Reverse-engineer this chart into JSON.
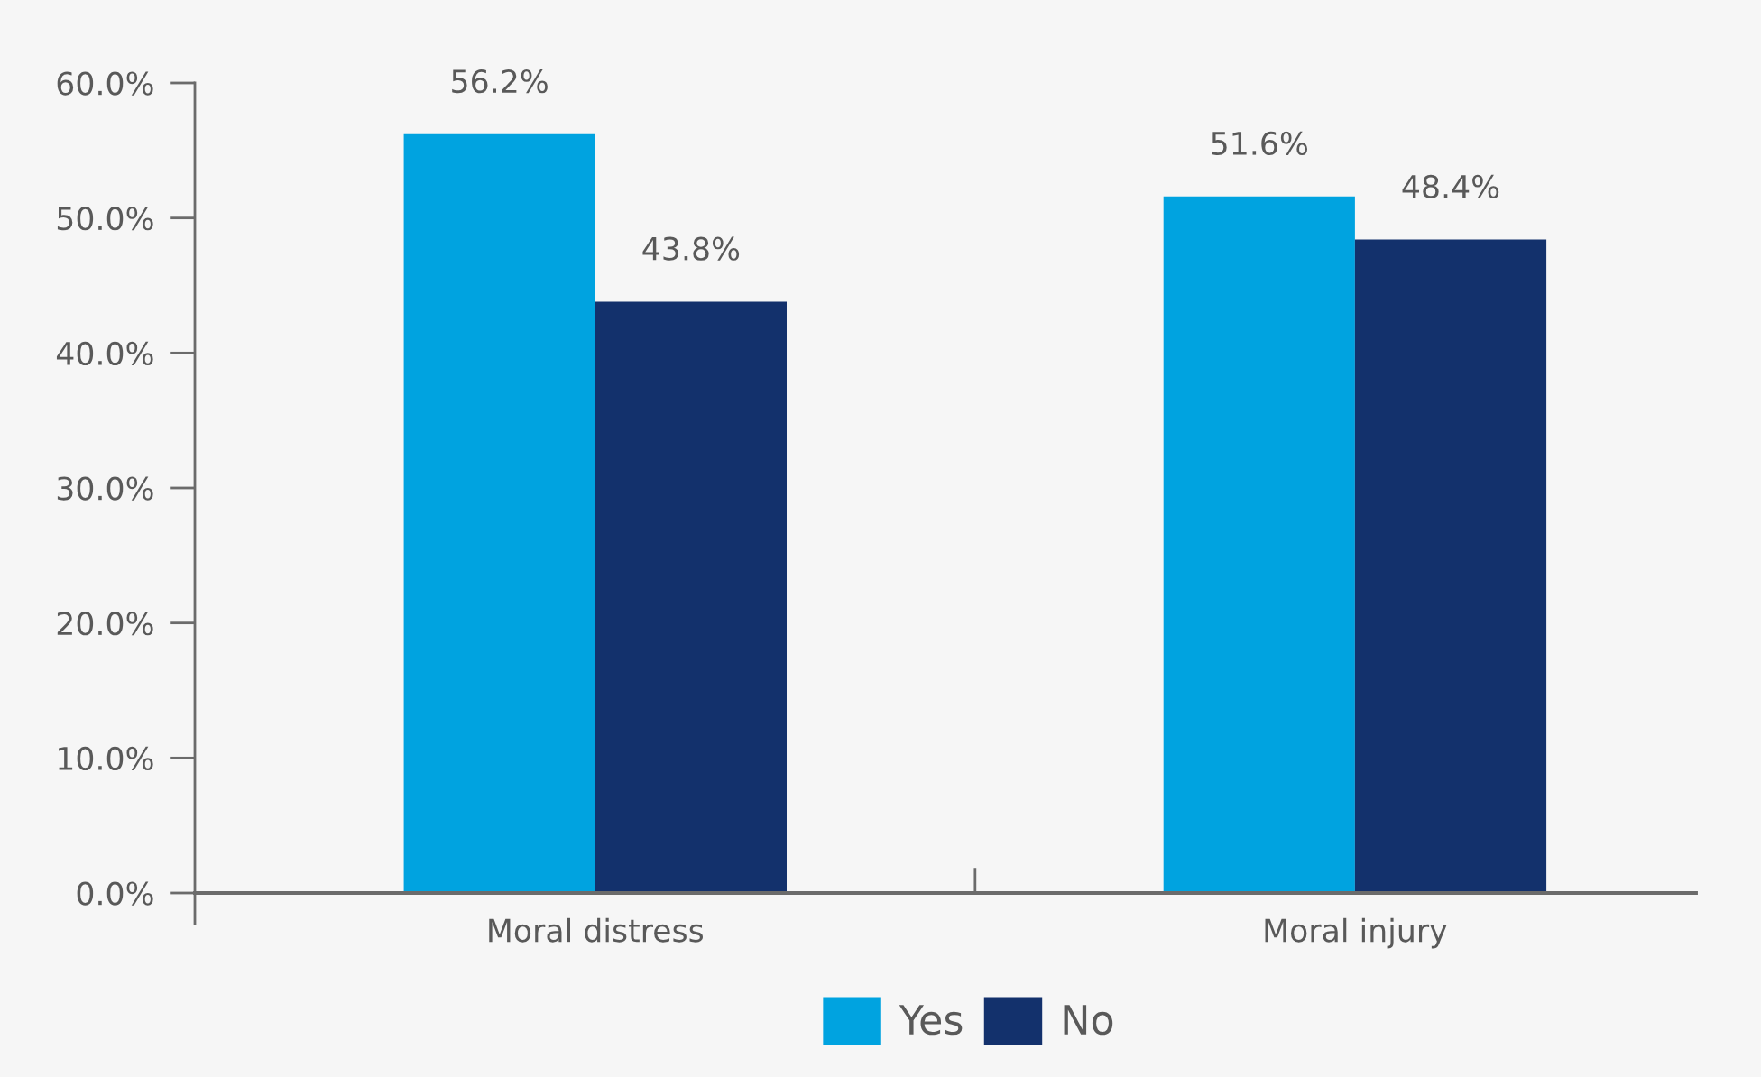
{
  "chart_data": {
    "type": "bar",
    "categories": [
      "Moral distress",
      "Moral injury"
    ],
    "series": [
      {
        "name": "Yes",
        "color": "#00a3e0",
        "values": [
          56.2,
          51.6
        ],
        "value_labels": [
          "56.2%",
          "51.6%"
        ]
      },
      {
        "name": "No",
        "color": "#13316c",
        "values": [
          43.8,
          48.4
        ],
        "value_labels": [
          "43.8%",
          "48.4%"
        ]
      }
    ],
    "ylim": [
      0,
      60
    ],
    "yticks": [
      {
        "value": 0,
        "label": "0.0%"
      },
      {
        "value": 10,
        "label": "10.0%"
      },
      {
        "value": 20,
        "label": "20.0%"
      },
      {
        "value": 30,
        "label": "30.0%"
      },
      {
        "value": 40,
        "label": "40.0%"
      },
      {
        "value": 50,
        "label": "50.0%"
      },
      {
        "value": 60,
        "label": "60.0%"
      }
    ],
    "legend": "bottom"
  }
}
